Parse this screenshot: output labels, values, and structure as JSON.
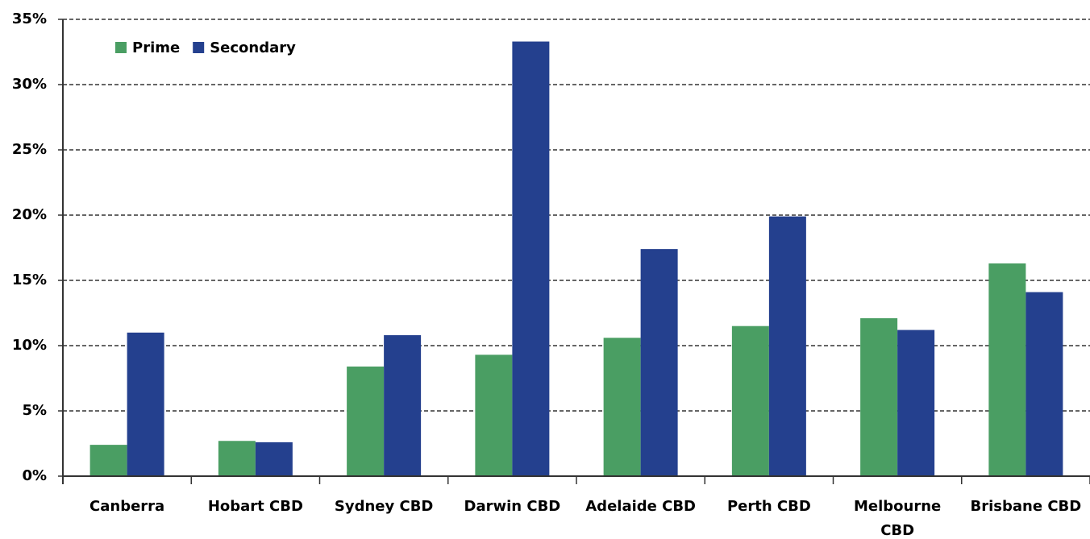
{
  "chart_data": {
    "type": "bar",
    "categories": [
      "Canberra",
      "Hobart CBD",
      "Sydney CBD",
      "Darwin CBD",
      "Adelaide CBD",
      "Perth CBD",
      "Melbourne CBD",
      "Brisbane CBD"
    ],
    "series": [
      {
        "name": "Prime",
        "color": "#4a9e63",
        "values": [
          2.4,
          2.7,
          8.4,
          9.3,
          10.6,
          11.5,
          12.1,
          16.3
        ]
      },
      {
        "name": "Secondary",
        "color": "#24408e",
        "values": [
          11.0,
          2.6,
          10.8,
          33.3,
          17.4,
          19.9,
          11.2,
          14.1
        ]
      }
    ],
    "ylim": [
      0,
      35
    ],
    "yticks": [
      {
        "value": 0,
        "label": "0%"
      },
      {
        "value": 5,
        "label": "5%"
      },
      {
        "value": 10,
        "label": "10%"
      },
      {
        "value": 15,
        "label": "15%"
      },
      {
        "value": 20,
        "label": "20%"
      },
      {
        "value": 25,
        "label": "25%"
      },
      {
        "value": 30,
        "label": "30%"
      },
      {
        "value": 35,
        "label": "35%"
      }
    ],
    "grid": true,
    "legend": "top-left"
  }
}
